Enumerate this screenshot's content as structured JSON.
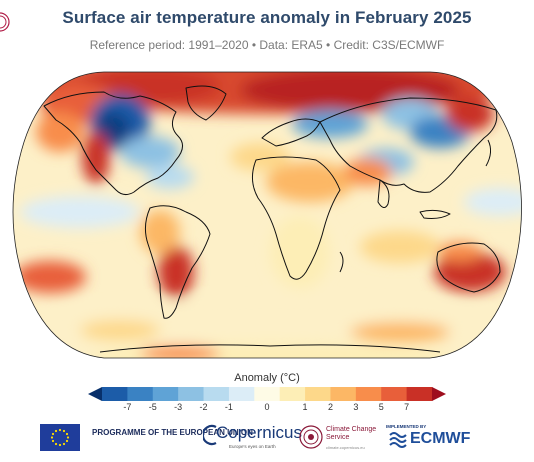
{
  "title": "Surface air temperature anomaly in February 2025",
  "subtitle": "Reference period: 1991–2020 • Data: ERA5 • Credit: C3S/ECMWF",
  "map": {
    "projection": "robinson",
    "variable": "Surface air temperature anomaly",
    "month": "February 2025",
    "features": [
      "land-outlines",
      "ocean",
      "anomaly-field"
    ],
    "warm_regions": [
      "Arctic",
      "Alaska",
      "northern Siberia",
      "Mexico",
      "southern South America",
      "northern Africa",
      "Middle East",
      "Australia",
      "eastern Pacific",
      "northern Atlantic"
    ],
    "cold_regions": [
      "Canada",
      "central USA",
      "eastern Europe",
      "eastern Russia",
      "Tibetan Plateau",
      "equatorial Pacific"
    ]
  },
  "colorbar": {
    "title": "Anomaly (°C)",
    "ticks": [
      "-7",
      "-5",
      "-3",
      "-2",
      "-1",
      "0",
      "1",
      "2",
      "3",
      "5",
      "7"
    ],
    "colors": [
      "#08306b",
      "#1c5ca8",
      "#3a82c3",
      "#5fa3d6",
      "#8dc1e3",
      "#b8dbef",
      "#dcedf7",
      "#fefbe6",
      "#fdeeb6",
      "#fdd88a",
      "#fcb765",
      "#f88d4b",
      "#e85f3a",
      "#c93026",
      "#9e0e1e"
    ]
  },
  "footer": {
    "eu_programme": "PROGRAMME OF THE EUROPEAN UNION",
    "copernicus": "Copernicus",
    "copernicus_tagline": "Europe's eyes on Earth",
    "c3s": "Climate Change Service",
    "c3s_tagline": "climate.copernicus.eu",
    "implemented_by": "IMPLEMENTED BY",
    "ecmwf": "ECMWF"
  }
}
